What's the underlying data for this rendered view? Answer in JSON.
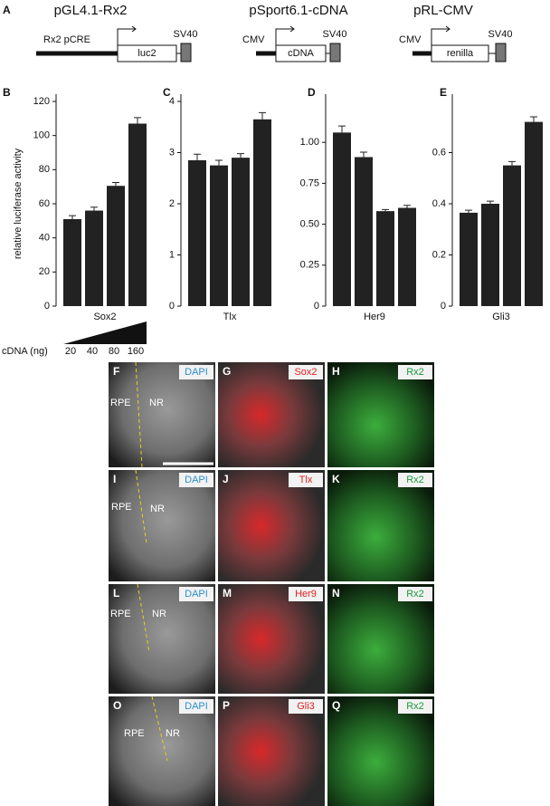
{
  "panel_a": {
    "letter": "A",
    "constructs": [
      {
        "name": "pGL4.1-Rx2",
        "promoter": "Rx2 pCRE",
        "gene": "luc2",
        "terminator": "SV40"
      },
      {
        "name": "pSport6.1-cDNA",
        "promoter": "CMV",
        "gene": "cDNA",
        "terminator": "SV40"
      },
      {
        "name": "pRL-CMV",
        "promoter": "CMV",
        "gene": "renilla",
        "terminator": "SV40"
      }
    ]
  },
  "chart_data": [
    {
      "type": "bar",
      "letter": "B",
      "y_label": "relative luciferase activity",
      "x_label": "Sox2",
      "color": "#222222",
      "values": [
        51,
        56,
        70.5,
        107
      ],
      "errors": [
        2,
        2,
        2,
        3.5
      ],
      "ylim": [
        0,
        120
      ],
      "yticks": [
        0,
        20,
        40,
        60,
        80,
        100,
        120
      ]
    },
    {
      "type": "bar",
      "letter": "C",
      "x_label": "Tlx",
      "color": "#222222",
      "values": [
        2.85,
        2.75,
        2.9,
        3.65
      ],
      "errors": [
        0.12,
        0.1,
        0.08,
        0.13
      ],
      "ylim": [
        0,
        4
      ],
      "yticks": [
        0,
        1,
        2,
        3,
        4
      ]
    },
    {
      "type": "bar",
      "letter": "D",
      "x_label": "Her9",
      "color": "#222222",
      "values": [
        1.06,
        0.91,
        0.58,
        0.6
      ],
      "errors": [
        0.04,
        0.03,
        0.01,
        0.015
      ],
      "ylim": [
        0,
        1.25
      ],
      "yticks": [
        0,
        0.25,
        {
          "value": 0.5,
          "label": "0.50"
        },
        0.75,
        {
          "value": 1,
          "label": "1.00"
        }
      ]
    },
    {
      "type": "bar",
      "letter": "E",
      "x_label": "Gli3",
      "color": "#222222",
      "values": [
        0.365,
        0.4,
        0.55,
        0.72
      ],
      "errors": [
        0.01,
        0.01,
        0.015,
        0.02
      ],
      "ylim": [
        0,
        0.8
      ],
      "yticks": [
        0,
        0.2,
        0.4,
        0.6
      ]
    }
  ],
  "dose": {
    "label": "cDNA (ng)",
    "amounts": [
      20,
      40,
      80,
      160
    ]
  },
  "micrographs": {
    "regions": [
      "RPE",
      "NR"
    ],
    "rows": [
      [
        {
          "letter": "F",
          "stain": "DAPI",
          "color": "#2a90d0"
        },
        {
          "letter": "G",
          "stain": "Sox2",
          "color": "#e02020"
        },
        {
          "letter": "H",
          "stain": "Rx2",
          "color": "#1a9a3a"
        }
      ],
      [
        {
          "letter": "I",
          "stain": "DAPI",
          "color": "#2a90d0"
        },
        {
          "letter": "J",
          "stain": "Tlx",
          "color": "#e02020"
        },
        {
          "letter": "K",
          "stain": "Rx2",
          "color": "#1a9a3a"
        }
      ],
      [
        {
          "letter": "L",
          "stain": "DAPI",
          "color": "#2a90d0"
        },
        {
          "letter": "M",
          "stain": "Her9",
          "color": "#e02020"
        },
        {
          "letter": "N",
          "stain": "Rx2",
          "color": "#1a9a3a"
        }
      ],
      [
        {
          "letter": "O",
          "stain": "DAPI",
          "color": "#2a90d0"
        },
        {
          "letter": "P",
          "stain": "Gli3",
          "color": "#e02020"
        },
        {
          "letter": "Q",
          "stain": "Rx2",
          "color": "#1a9a3a"
        }
      ]
    ]
  }
}
